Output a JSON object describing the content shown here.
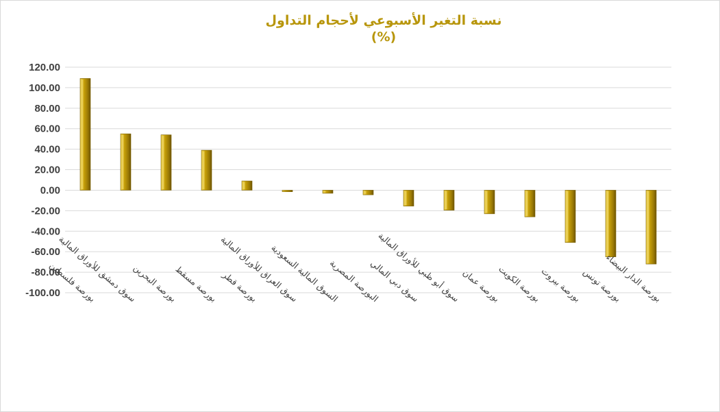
{
  "chart_data": {
    "type": "bar",
    "title": "نسبة التغير الأسبوعي لأحجام التداول",
    "subtitle": "(%)",
    "xlabel": "",
    "ylabel": "",
    "ylim": [
      -100,
      120
    ],
    "ytick_step": 20,
    "ytick_labels": [
      "120.00",
      "100.00",
      "80.00",
      "60.00",
      "40.00",
      "20.00",
      "0.00",
      "-20.00",
      "-40.00",
      "-60.00",
      "-80.00",
      "-100.00"
    ],
    "grid": true,
    "legend": "none",
    "bar_color": "#c9a20a",
    "categories": [
      "بورصة فلسطين",
      "سوق دمشق للأوراق المالية",
      "بورصة البحرين",
      "بورصة مسقط",
      "بورصة قطر",
      "سوق العراق للأوراق المالية",
      "السوق المالية السعودية",
      "البورصة المصرية",
      "سوق دبي المالي",
      "سوق أبو ظبي للأوراق المالية",
      "بورصة عمان",
      "بورصة الكويت",
      "بورصة بيروت",
      "بورصة تونس",
      "بورصة الدار البيضاء"
    ],
    "values": [
      109,
      55,
      54,
      39,
      9,
      -1.5,
      -3,
      -4.5,
      -15.5,
      -19.5,
      -23,
      -26,
      -51,
      -65,
      -72
    ]
  }
}
